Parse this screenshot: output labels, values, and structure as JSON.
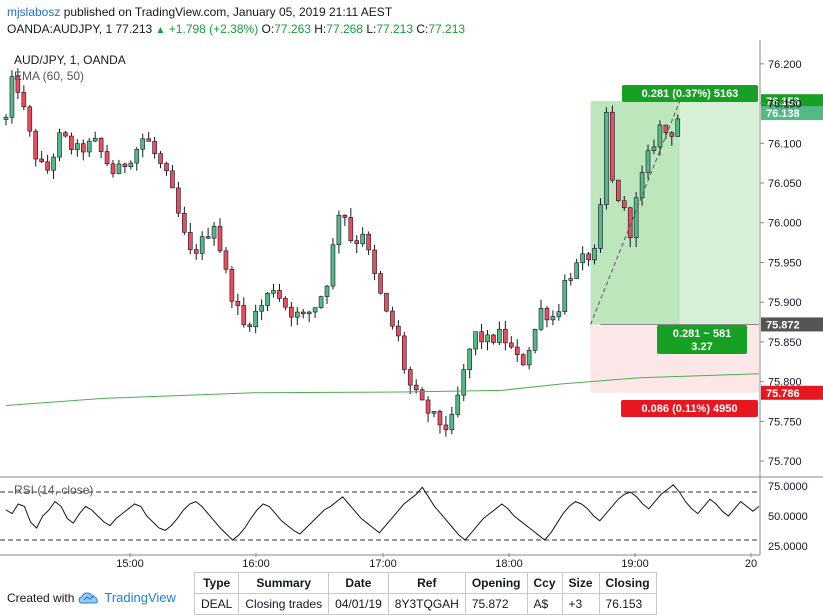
{
  "header": {
    "user": "mjslabosz",
    "published_text": "published on TradingView.com, January 05, 2019 21:11 AEST",
    "symbol": "OANDA:AUDJPY, 1",
    "last": "77.213",
    "change": "+1.798 (+2.38%)",
    "o_label": "O:",
    "o_value": "77.263",
    "h_label": "H:",
    "h_value": "77.268",
    "l_label": "L:",
    "l_value": "77.213",
    "c_label": "C:",
    "c_value": "77.213"
  },
  "footer": {
    "created_with": "Created with",
    "brand": "TradingView"
  },
  "deal_table": {
    "headers": [
      "Type",
      "Summary",
      "Date",
      "Ref",
      "Opening",
      "Ccy",
      "Size",
      "Closing"
    ],
    "row": [
      "DEAL",
      "Closing trades",
      "04/01/19",
      "8Y3TQGAH",
      "75.872",
      "A$",
      "+3",
      "76.153"
    ]
  },
  "colors": {
    "up": "#53b987",
    "down": "#eb4d5c",
    "wick": "#131722",
    "ema": "#4caf50",
    "profit_zone": "#c8ebc8",
    "loss_zone": "#fbe4e6",
    "profit_label": "#16a124",
    "loss_label": "#e8171f",
    "last_price": "#53b987"
  },
  "chart_data": [
    {
      "type": "candlestick",
      "title": "AUD/JPY, 1, OANDA",
      "indicator": "EMA (60, 50)",
      "x_ticks": [
        "15:00",
        "16:00",
        "17:00",
        "18:00",
        "19:00",
        "20"
      ],
      "y_ticks": [
        "76.200",
        "76.150",
        "76.100",
        "76.050",
        "76.000",
        "75.950",
        "75.900",
        "75.850",
        "75.800",
        "75.750",
        "75.700"
      ],
      "ylim": [
        75.68,
        76.23
      ],
      "segments": [
        {
          "t": 0,
          "p": 76.13
        },
        {
          "t": 8,
          "p": 76.19
        },
        {
          "t": 18,
          "p": 76.14
        },
        {
          "t": 28,
          "p": 76.09
        },
        {
          "t": 40,
          "p": 76.06
        },
        {
          "t": 55,
          "p": 76.11
        },
        {
          "t": 70,
          "p": 76.09
        },
        {
          "t": 90,
          "p": 76.1
        },
        {
          "t": 110,
          "p": 76.06
        },
        {
          "t": 130,
          "p": 76.09
        },
        {
          "t": 140,
          "p": 76.11
        },
        {
          "t": 165,
          "p": 76.05
        },
        {
          "t": 185,
          "p": 75.96
        },
        {
          "t": 195,
          "p": 75.97
        },
        {
          "t": 210,
          "p": 76.0
        },
        {
          "t": 225,
          "p": 75.92
        },
        {
          "t": 240,
          "p": 75.87
        },
        {
          "t": 255,
          "p": 75.89
        },
        {
          "t": 270,
          "p": 75.92
        },
        {
          "t": 285,
          "p": 75.89
        },
        {
          "t": 300,
          "p": 75.88
        },
        {
          "t": 315,
          "p": 75.9
        },
        {
          "t": 325,
          "p": 75.93
        },
        {
          "t": 338,
          "p": 76.03
        },
        {
          "t": 350,
          "p": 75.97
        },
        {
          "t": 360,
          "p": 75.99
        },
        {
          "t": 370,
          "p": 75.94
        },
        {
          "t": 385,
          "p": 75.88
        },
        {
          "t": 395,
          "p": 75.86
        },
        {
          "t": 405,
          "p": 75.8
        },
        {
          "t": 420,
          "p": 75.77
        },
        {
          "t": 435,
          "p": 75.75
        },
        {
          "t": 448,
          "p": 75.74
        },
        {
          "t": 460,
          "p": 75.8
        },
        {
          "t": 472,
          "p": 75.86
        },
        {
          "t": 485,
          "p": 75.85
        },
        {
          "t": 500,
          "p": 75.86
        },
        {
          "t": 510,
          "p": 75.84
        },
        {
          "t": 520,
          "p": 75.82
        },
        {
          "t": 530,
          "p": 75.85
        },
        {
          "t": 540,
          "p": 75.89
        },
        {
          "t": 555,
          "p": 75.88
        },
        {
          "t": 565,
          "p": 75.93
        },
        {
          "t": 580,
          "p": 75.95
        },
        {
          "t": 590,
          "p": 75.96
        },
        {
          "t": 598,
          "p": 75.96
        },
        {
          "t": 605,
          "p": 76.15
        },
        {
          "t": 612,
          "p": 76.05
        },
        {
          "t": 622,
          "p": 76.02
        },
        {
          "t": 630,
          "p": 75.99
        },
        {
          "t": 640,
          "p": 76.05
        },
        {
          "t": 650,
          "p": 76.09
        },
        {
          "t": 660,
          "p": 76.12
        },
        {
          "t": 670,
          "p": 76.11
        },
        {
          "t": 680,
          "p": 76.138
        }
      ],
      "ema": [
        {
          "t": 0,
          "p": 75.77
        },
        {
          "t": 100,
          "p": 75.779
        },
        {
          "t": 250,
          "p": 75.786
        },
        {
          "t": 400,
          "p": 75.787
        },
        {
          "t": 500,
          "p": 75.789
        },
        {
          "t": 560,
          "p": 75.797
        },
        {
          "t": 640,
          "p": 75.805
        },
        {
          "t": 760,
          "p": 75.81
        }
      ],
      "position": {
        "entry": 75.872,
        "target": 76.153,
        "stop": 75.786,
        "last": 76.138,
        "profit_label": "0.281 (0.37%) 5163",
        "loss_label": "0.086 (0.11%) 4950",
        "center_label_1": "0.281 ~ 581",
        "center_label_2": "3.27",
        "entry_tag": "75.872",
        "target_tag": "76.153",
        "stop_tag": "75.786",
        "last_tag": "76.138"
      }
    },
    {
      "type": "line",
      "title": "RSI (14, close)",
      "ylim": [
        20,
        80
      ],
      "y_ticks": [
        "75.0000",
        "50.0000",
        "25.0000"
      ],
      "bands": [
        70,
        30
      ],
      "series": [
        {
          "values": [
            55,
            52,
            60,
            58,
            45,
            40,
            50,
            55,
            62,
            58,
            48,
            44,
            52,
            58,
            55,
            50,
            45,
            42,
            48,
            52,
            56,
            60,
            58,
            50,
            45,
            40,
            38,
            42,
            48,
            55,
            60,
            62,
            58,
            52,
            46,
            40,
            35,
            30,
            34,
            40,
            48,
            55,
            60,
            58,
            52,
            46,
            42,
            38,
            35,
            40,
            45,
            50,
            55,
            58,
            62,
            66,
            60,
            54,
            48,
            44,
            40,
            36,
            42,
            48,
            54,
            60,
            64,
            68,
            74,
            66,
            58,
            52,
            46,
            40,
            34,
            30,
            36,
            42,
            48,
            52,
            56,
            60,
            56,
            50,
            46,
            42,
            38,
            34,
            30,
            36,
            44,
            52,
            58,
            62,
            60,
            56,
            50,
            46,
            52,
            58,
            64,
            68,
            70,
            66,
            60,
            56,
            62,
            68,
            72,
            76,
            70,
            62,
            56,
            52,
            58,
            64,
            60,
            54,
            50,
            56,
            62,
            58,
            54,
            58
          ]
        }
      ]
    }
  ]
}
